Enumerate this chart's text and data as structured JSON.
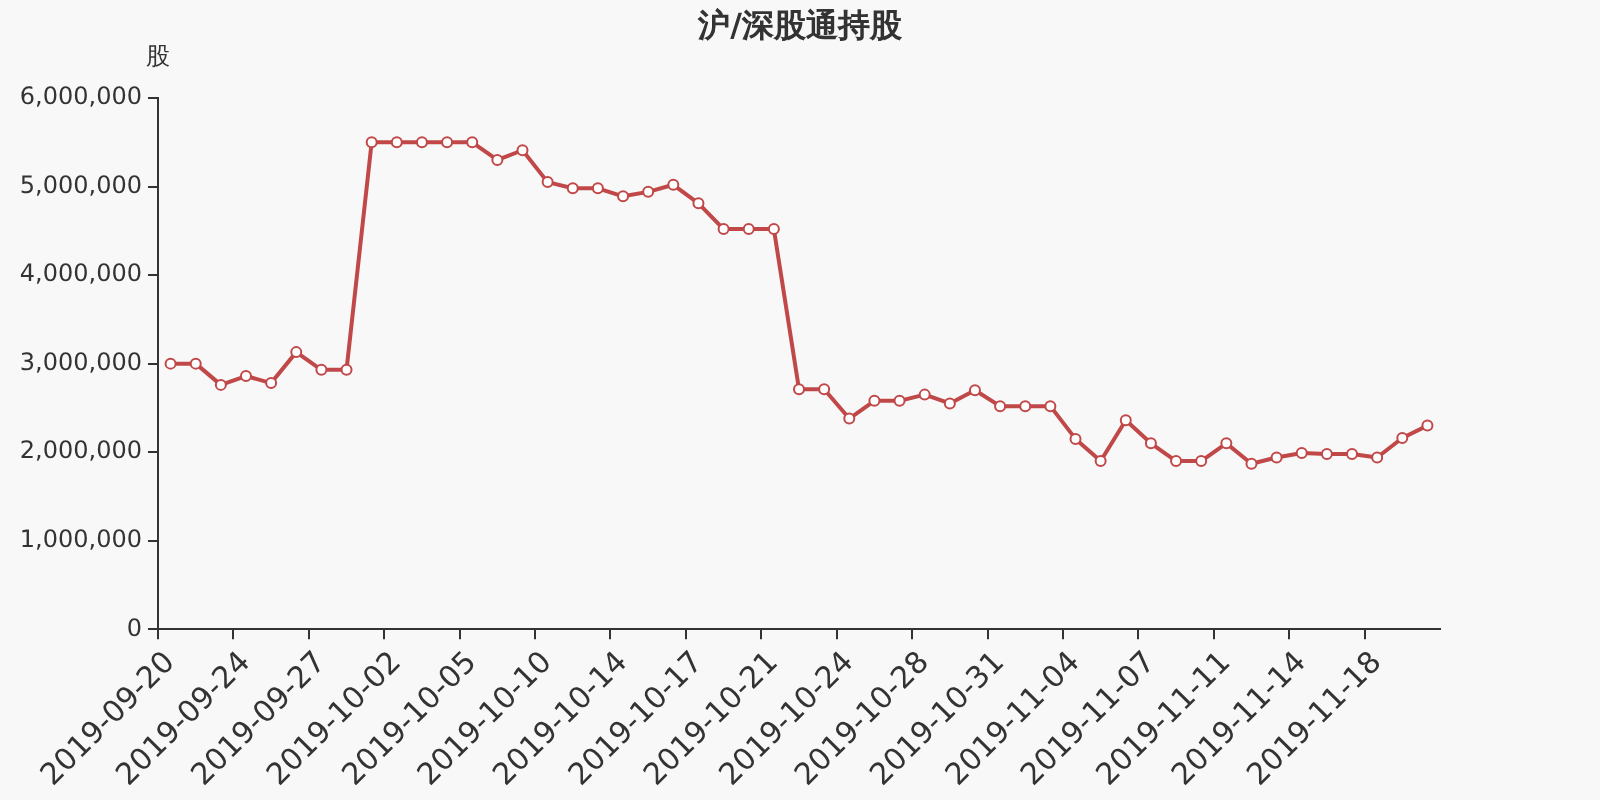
{
  "chart_data": {
    "type": "line",
    "title": "沪/深股通持股",
    "ylabel": "股",
    "categories": [
      "2019-09-20",
      null,
      null,
      "2019-09-24",
      null,
      null,
      "2019-09-27",
      null,
      null,
      "2019-10-02",
      null,
      null,
      "2019-10-05",
      null,
      null,
      "2019-10-10",
      null,
      null,
      "2019-10-14",
      null,
      null,
      "2019-10-17",
      null,
      null,
      "2019-10-21",
      null,
      null,
      "2019-10-24",
      null,
      null,
      "2019-10-28",
      null,
      null,
      "2019-10-31",
      null,
      null,
      "2019-11-04",
      null,
      null,
      "2019-11-07",
      null,
      null,
      "2019-11-11",
      null,
      null,
      "2019-11-14",
      null,
      null,
      "2019-11-18",
      null,
      null
    ],
    "series": [
      {
        "color": "#c14848",
        "values": [
          3000000,
          3000000,
          2760000,
          2860000,
          2780000,
          3130000,
          2930000,
          2930000,
          5500000,
          5500000,
          5500000,
          5500000,
          5500000,
          5300000,
          5410000,
          5050000,
          4980000,
          4980000,
          4890000,
          4940000,
          5020000,
          4810000,
          4520000,
          4520000,
          4520000,
          2710000,
          2710000,
          2380000,
          2580000,
          2580000,
          2650000,
          2550000,
          2700000,
          2520000,
          2520000,
          2520000,
          2150000,
          1900000,
          2360000,
          2100000,
          1900000,
          1900000,
          2100000,
          1870000,
          1940000,
          1990000,
          1980000,
          1980000,
          1940000,
          2160000,
          2300000
        ]
      }
    ],
    "ylim": [
      0,
      6000000
    ],
    "yticks": [
      0,
      {
        "value": 1000000,
        "label": "1,000,000"
      },
      {
        "value": 2000000,
        "label": "2,000,000"
      },
      {
        "value": 3000000,
        "label": "3,000,000"
      },
      {
        "value": 4000000,
        "label": "4,000,000"
      },
      {
        "value": 5000000,
        "label": "5,000,000"
      },
      {
        "value": 6000000,
        "label": "6,000,000"
      }
    ],
    "grid": false,
    "legend": false,
    "marker": "circle",
    "line_style": "solid"
  }
}
